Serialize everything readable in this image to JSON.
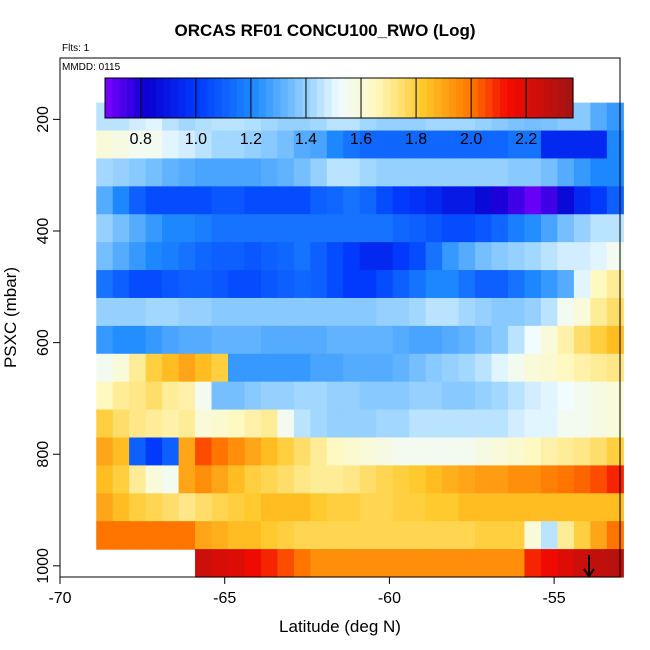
{
  "chart_data": {
    "type": "heatmap",
    "title": "ORCAS RF01 CONCU100_RWO (Log)",
    "annotations": [
      "Flts: 1",
      "MMDD: 0115"
    ],
    "xlabel": "Latitude (deg N)",
    "ylabel": "PSXC (mbar)",
    "xlim": [
      -70,
      -53
    ],
    "ylim": [
      1020,
      90
    ],
    "y_inverted": true,
    "xticks": [
      -70,
      -65,
      -60,
      -55
    ],
    "xtick_labels": [
      "-70",
      "-65",
      "-60",
      "-55"
    ],
    "yticks": [
      200,
      400,
      600,
      800,
      1000
    ],
    "ytick_labels": [
      "200",
      "400",
      "600",
      "800",
      "1000"
    ],
    "colorbar": {
      "range": [
        0.67,
        2.37
      ],
      "ticks": [
        0.8,
        1.0,
        1.2,
        1.4,
        1.6,
        1.8,
        2.0,
        2.2
      ],
      "tick_labels": [
        "0.8",
        "1.0",
        "1.2",
        "1.4",
        "1.6",
        "1.8",
        "2.0",
        "2.2"
      ]
    },
    "x_bins": [
      -68.9,
      -68.4,
      -67.9,
      -67.4,
      -66.9,
      -66.4,
      -65.9,
      -65.4,
      -64.9,
      -64.4,
      -63.9,
      -63.4,
      -62.9,
      -62.4,
      -61.9,
      -61.4,
      -60.9,
      -60.4,
      -59.9,
      -59.4,
      -58.9,
      -58.4,
      -57.9,
      -57.4,
      -56.9,
      -56.4,
      -55.9,
      -55.4,
      -54.9,
      -54.4,
      -53.9,
      -53.4,
      -52.9
    ],
    "y_bins": [
      170,
      220,
      270,
      320,
      370,
      420,
      470,
      520,
      570,
      620,
      670,
      720,
      770,
      820,
      870,
      920,
      970,
      1020
    ],
    "row_values": [
      [
        1.45,
        1.45,
        1.48,
        1.5,
        1.45,
        1.42,
        1.44,
        1.45,
        1.45,
        1.44,
        1.42,
        1.4,
        1.4,
        1.42,
        1.45,
        1.45,
        1.42,
        1.4,
        1.4,
        1.4,
        1.42,
        1.42,
        1.42,
        1.4,
        1.38,
        1.36,
        1.35,
        1.36,
        1.38,
        1.38,
        1.3,
        1.25
      ],
      [
        1.6,
        1.58,
        1.55,
        1.55,
        1.5,
        1.48,
        1.45,
        1.42,
        1.42,
        1.4,
        1.38,
        1.35,
        1.3,
        1.28,
        1.2,
        1.15,
        1.12,
        1.12,
        1.12,
        1.12,
        1.12,
        1.12,
        1.12,
        1.12,
        1.12,
        1.15,
        1.15,
        0.95,
        0.95,
        0.95,
        0.95,
        1.2
      ],
      [
        1.42,
        1.4,
        1.38,
        1.35,
        1.32,
        1.3,
        1.28,
        1.28,
        1.28,
        1.28,
        1.3,
        1.32,
        1.35,
        1.4,
        1.45,
        1.45,
        1.42,
        1.4,
        1.4,
        1.4,
        1.4,
        1.4,
        1.4,
        1.4,
        1.4,
        1.38,
        1.38,
        1.35,
        1.3,
        1.25,
        1.2,
        1.2
      ],
      [
        1.3,
        1.2,
        1.1,
        1.05,
        1.05,
        1.05,
        1.05,
        1.08,
        1.08,
        1.05,
        1.05,
        1.05,
        1.05,
        1.1,
        1.12,
        1.15,
        1.12,
        1.05,
        1.0,
        0.98,
        0.95,
        0.9,
        0.9,
        0.85,
        0.8,
        0.75,
        0.7,
        0.75,
        0.85,
        0.95,
        1.0,
        1.1
      ],
      [
        1.4,
        1.35,
        1.3,
        1.25,
        1.2,
        1.2,
        1.18,
        1.15,
        1.15,
        1.15,
        1.15,
        1.15,
        1.15,
        1.15,
        1.15,
        1.15,
        1.15,
        1.15,
        1.12,
        1.1,
        1.08,
        1.05,
        1.05,
        1.08,
        1.12,
        1.18,
        1.22,
        1.28,
        1.35,
        1.4,
        1.45,
        1.45
      ],
      [
        1.35,
        1.3,
        1.25,
        1.2,
        1.18,
        1.15,
        1.12,
        1.1,
        1.1,
        1.08,
        1.1,
        1.12,
        1.15,
        1.1,
        1.05,
        1.0,
        0.95,
        0.95,
        1.0,
        1.05,
        1.15,
        1.25,
        1.3,
        1.35,
        1.38,
        1.4,
        1.42,
        1.45,
        1.48,
        1.48,
        1.5,
        1.55
      ],
      [
        1.15,
        1.1,
        1.05,
        1.05,
        1.08,
        1.1,
        1.1,
        1.08,
        1.05,
        1.05,
        1.08,
        1.1,
        1.12,
        1.1,
        1.05,
        1.0,
        1.0,
        1.05,
        1.1,
        1.15,
        1.2,
        1.2,
        1.15,
        1.1,
        1.1,
        1.15,
        1.2,
        1.25,
        1.3,
        1.5,
        1.65,
        1.7
      ],
      [
        1.4,
        1.4,
        1.4,
        1.42,
        1.42,
        1.4,
        1.4,
        1.38,
        1.38,
        1.38,
        1.38,
        1.38,
        1.38,
        1.38,
        1.38,
        1.38,
        1.38,
        1.4,
        1.4,
        1.42,
        1.45,
        1.45,
        1.42,
        1.4,
        1.38,
        1.38,
        1.4,
        1.45,
        1.55,
        1.6,
        1.7,
        1.75
      ],
      [
        1.25,
        1.22,
        1.22,
        1.25,
        1.28,
        1.3,
        1.3,
        1.32,
        1.32,
        1.32,
        1.3,
        1.3,
        1.3,
        1.3,
        1.32,
        1.32,
        1.32,
        1.32,
        1.3,
        1.28,
        1.28,
        1.3,
        1.32,
        1.35,
        1.38,
        1.45,
        1.52,
        1.6,
        1.68,
        1.75,
        1.8,
        1.85
      ],
      [
        1.55,
        1.6,
        1.7,
        1.8,
        1.85,
        1.9,
        1.85,
        1.8,
        1.25,
        1.25,
        1.25,
        1.25,
        1.25,
        1.28,
        1.28,
        1.3,
        1.3,
        1.3,
        1.32,
        1.35,
        1.38,
        1.4,
        1.42,
        1.45,
        1.5,
        1.55,
        1.6,
        1.62,
        1.65,
        1.68,
        1.7,
        1.72
      ],
      [
        1.65,
        1.7,
        1.72,
        1.75,
        1.7,
        1.68,
        1.55,
        1.35,
        1.35,
        1.38,
        1.4,
        1.4,
        1.42,
        1.42,
        1.4,
        1.4,
        1.38,
        1.38,
        1.38,
        1.4,
        1.4,
        1.38,
        1.38,
        1.4,
        1.42,
        1.45,
        1.48,
        1.5,
        1.52,
        1.55,
        1.58,
        1.6
      ],
      [
        1.8,
        1.75,
        1.72,
        1.7,
        1.68,
        1.7,
        1.6,
        1.62,
        1.65,
        1.68,
        1.7,
        1.55,
        1.45,
        1.42,
        1.4,
        1.4,
        1.4,
        1.42,
        1.42,
        1.45,
        1.45,
        1.45,
        1.45,
        1.45,
        1.45,
        1.48,
        1.5,
        1.5,
        1.55,
        1.55,
        1.58,
        1.6
      ],
      [
        1.9,
        1.85,
        1.1,
        1.0,
        1.1,
        1.9,
        2.05,
        2.0,
        1.95,
        1.9,
        1.85,
        1.8,
        1.75,
        1.7,
        1.65,
        1.62,
        1.6,
        1.58,
        1.55,
        1.55,
        1.55,
        1.55,
        1.55,
        1.58,
        1.6,
        1.62,
        1.65,
        1.68,
        1.7,
        1.72,
        1.75,
        1.8
      ],
      [
        1.85,
        1.8,
        1.7,
        1.6,
        1.55,
        1.9,
        1.95,
        1.9,
        1.85,
        1.8,
        1.78,
        1.75,
        1.72,
        1.7,
        1.7,
        1.72,
        1.75,
        1.78,
        1.8,
        1.82,
        1.85,
        1.88,
        1.9,
        1.92,
        1.92,
        1.95,
        1.95,
        1.98,
        2.0,
        2.02,
        2.05,
        2.1
      ],
      [
        1.9,
        1.85,
        1.8,
        1.78,
        1.75,
        1.72,
        1.75,
        1.78,
        1.8,
        1.82,
        1.85,
        1.85,
        1.85,
        1.82,
        1.8,
        1.8,
        1.78,
        1.78,
        1.8,
        1.8,
        1.82,
        1.82,
        1.85,
        1.85,
        1.85,
        1.85,
        1.85,
        1.85,
        1.85,
        1.85,
        1.85,
        1.85
      ],
      [
        2.0,
        2.0,
        2.0,
        2.0,
        2.0,
        2.0,
        1.9,
        1.88,
        1.85,
        1.85,
        1.82,
        1.8,
        1.78,
        1.78,
        1.78,
        1.78,
        1.78,
        1.78,
        1.78,
        1.78,
        1.78,
        1.78,
        1.78,
        1.8,
        1.8,
        1.8,
        1.6,
        1.45,
        1.7,
        1.8,
        1.9,
        2.0
      ],
      [
        2.05,
        2.05,
        2.1,
        2.15,
        2.2,
        2.25,
        2.25,
        2.22,
        2.2,
        2.15,
        2.1,
        2.05,
        2.0,
        1.95,
        1.95,
        1.95,
        1.95,
        1.95,
        1.95,
        1.95,
        1.95,
        1.95,
        1.95,
        1.95,
        1.95,
        1.95,
        2.1,
        2.15,
        2.2,
        2.25,
        2.28,
        2.3
      ]
    ]
  }
}
